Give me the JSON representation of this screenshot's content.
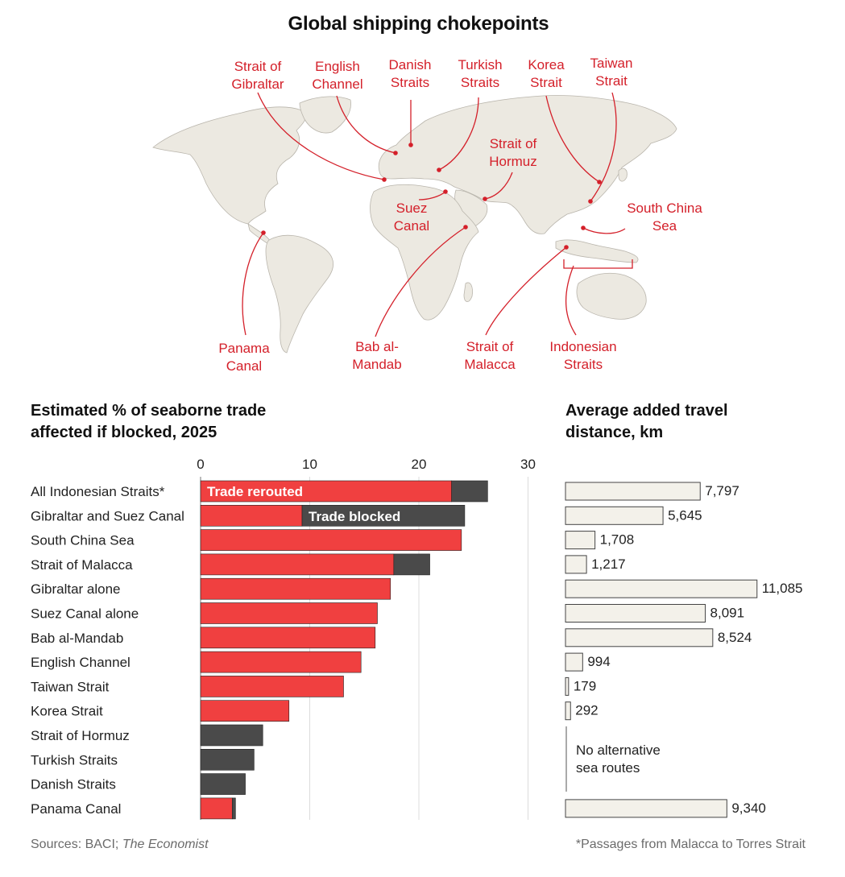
{
  "title": "Global shipping chokepoints",
  "colors": {
    "red": "#f04040",
    "dark": "#4a4a4a",
    "label_red": "#d4202a",
    "land": "#ece9e1",
    "land_stroke": "#b9b5ac",
    "distance_bar": "#f3f1ea",
    "grid": "#dcdcdc"
  },
  "map_labels": {
    "gibraltar": [
      "Strait of",
      "Gibraltar"
    ],
    "english_channel": [
      "English",
      "Channel"
    ],
    "danish": [
      "Danish",
      "Straits"
    ],
    "turkish": [
      "Turkish",
      "Straits"
    ],
    "korea": [
      "Korea",
      "Strait"
    ],
    "taiwan": [
      "Taiwan",
      "Strait"
    ],
    "hormuz": [
      "Strait of",
      "Hormuz"
    ],
    "suez": [
      "Suez",
      "Canal"
    ],
    "south_china_sea": [
      "South China",
      "Sea"
    ],
    "panama": [
      "Panama",
      "Canal"
    ],
    "bab": [
      "Bab al-",
      "Mandab"
    ],
    "malacca": [
      "Strait of",
      "Malacca"
    ],
    "indonesian": [
      "Indonesian",
      "Straits"
    ]
  },
  "left_title": "Estimated % of seaborne trade affected if blocked, 2025",
  "right_title": "Average added travel distance, km",
  "annotations": {
    "rerouted": "Trade rerouted",
    "blocked": "Trade blocked",
    "no_alt": [
      "No alternative",
      "sea routes"
    ]
  },
  "chart_data": [
    {
      "type": "bar",
      "orientation": "horizontal",
      "stacked": true,
      "title": "Estimated % of seaborne trade affected if blocked, 2025",
      "categories": [
        "All Indonesian Straits*",
        "Gibraltar and Suez Canal",
        "South China Sea",
        "Strait of Malacca",
        "Gibraltar alone",
        "Suez Canal alone",
        "Bab al-Mandab",
        "English Channel",
        "Taiwan Strait",
        "Korea Strait",
        "Strait of Hormuz",
        "Turkish Straits",
        "Danish Straits",
        "Panama Canal"
      ],
      "series": [
        {
          "name": "Trade rerouted",
          "values": [
            23.0,
            9.3,
            23.9,
            17.7,
            17.4,
            16.2,
            16.0,
            14.7,
            13.1,
            8.1,
            0,
            0,
            0,
            2.9
          ]
        },
        {
          "name": "Trade blocked",
          "values": [
            3.3,
            14.9,
            0,
            3.3,
            0,
            0,
            0,
            0,
            0,
            0,
            5.7,
            4.9,
            4.1,
            0.3
          ]
        }
      ],
      "xticks": [
        0,
        10,
        20,
        30
      ],
      "xlim": [
        0,
        30
      ]
    },
    {
      "type": "bar",
      "orientation": "horizontal",
      "title": "Average added travel distance, km",
      "categories": [
        "All Indonesian Straits*",
        "Gibraltar and Suez Canal",
        "South China Sea",
        "Strait of Malacca",
        "Gibraltar alone",
        "Suez Canal alone",
        "Bab al-Mandab",
        "English Channel",
        "Taiwan Strait",
        "Korea Strait",
        "Strait of Hormuz",
        "Turkish Straits",
        "Danish Straits",
        "Panama Canal"
      ],
      "values": [
        7797,
        5645,
        1708,
        1217,
        11085,
        8091,
        8524,
        994,
        179,
        292,
        null,
        null,
        null,
        9340
      ],
      "value_labels": [
        "7,797",
        "5,645",
        "1,708",
        "1,217",
        "11,085",
        "8,091",
        "8,524",
        "994",
        "179",
        "292",
        "",
        "",
        "",
        "9,340"
      ],
      "note": "No alternative sea routes"
    }
  ],
  "footer": {
    "source_prefix": "Sources: BACI; ",
    "source_italic": "The Economist",
    "footnote": "*Passages from Malacca to Torres Strait"
  }
}
